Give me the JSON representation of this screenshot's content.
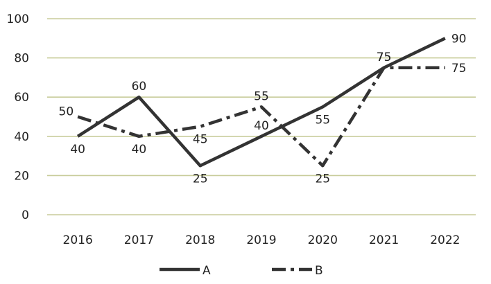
{
  "chart_data": {
    "type": "line",
    "categories": [
      "2016",
      "2017",
      "2018",
      "2019",
      "2020",
      "2021",
      "2022"
    ],
    "series": [
      {
        "name": "A",
        "values": [
          40,
          60,
          25,
          40,
          55,
          75,
          90
        ],
        "line_style": "solid",
        "color": "#333333"
      },
      {
        "name": "B",
        "values": [
          50,
          40,
          45,
          55,
          25,
          75,
          75
        ],
        "line_style": "dash-dot",
        "color": "#333333"
      }
    ],
    "ylim": [
      0,
      100
    ],
    "yticks": [
      0,
      20,
      40,
      60,
      80,
      100
    ],
    "grid": true,
    "grid_color": "#c8cc9a",
    "legend_position": "bottom",
    "title": "",
    "xlabel": "",
    "ylabel": ""
  }
}
